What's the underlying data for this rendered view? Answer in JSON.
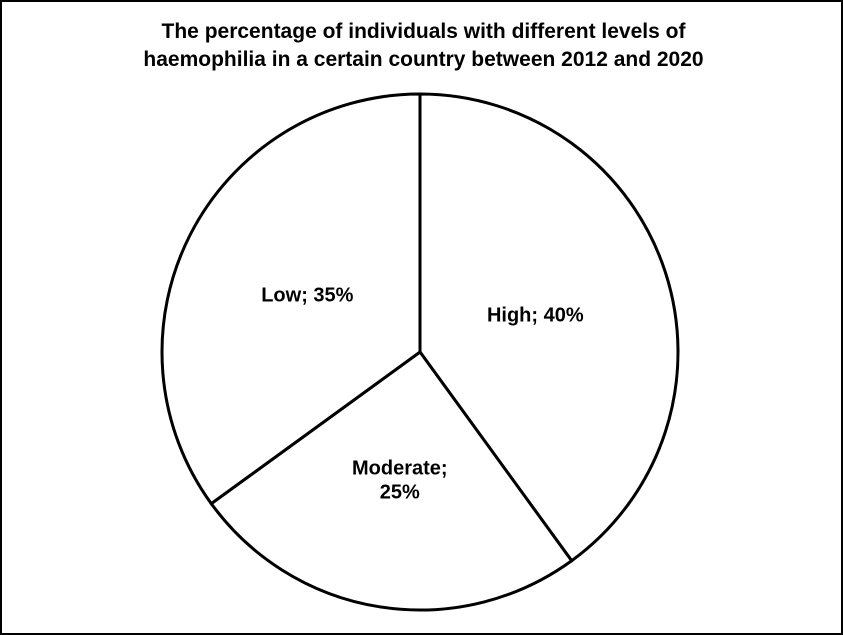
{
  "chart_data": {
    "type": "pie",
    "title_lines": [
      "The percentage of individuals with different levels of",
      "haemophilia in a certain country between 2012 and 2020"
    ],
    "slices": [
      {
        "name": "High",
        "value": 40,
        "label_lines": [
          "High; 40%"
        ]
      },
      {
        "name": "Moderate",
        "value": 25,
        "label_lines": [
          "Moderate;",
          "25%"
        ]
      },
      {
        "name": "Low",
        "value": 35,
        "label_lines": [
          "Low; 35%"
        ]
      }
    ],
    "start_angle": "12 o'clock",
    "direction": "clockwise",
    "colors": {
      "fill": "#ffffff",
      "stroke": "#000000"
    },
    "legend": "none"
  }
}
